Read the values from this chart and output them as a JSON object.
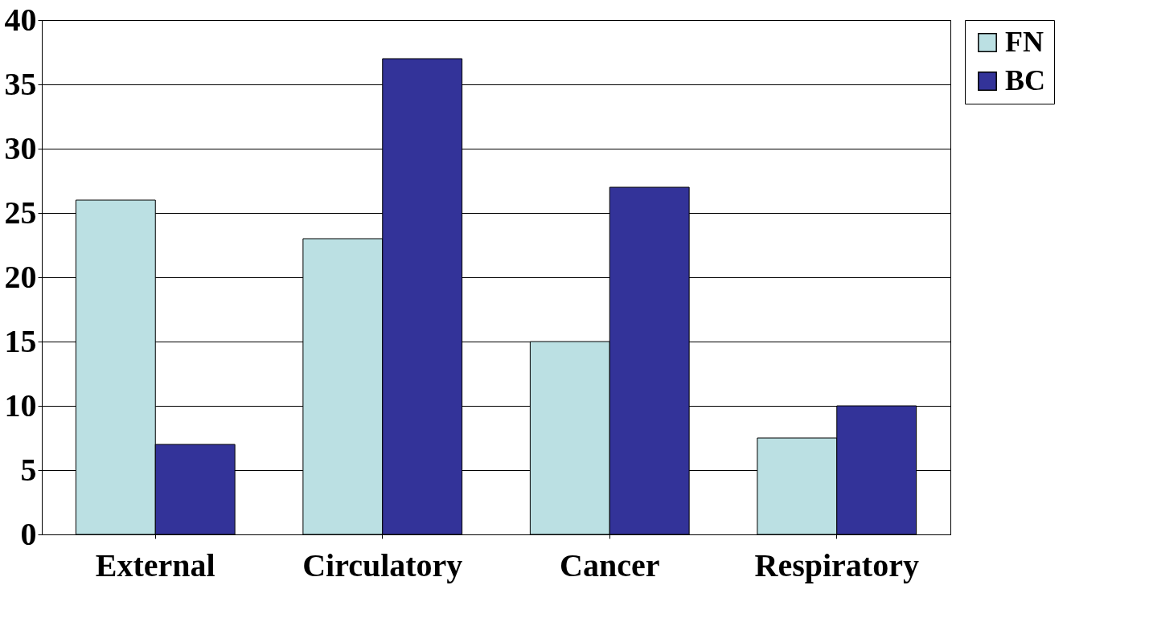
{
  "chart_data": {
    "type": "bar",
    "categories": [
      "External",
      "Circulatory",
      "Cancer",
      "Respiratory"
    ],
    "series": [
      {
        "name": "FN",
        "color": "#bbe0e3",
        "values": [
          26,
          23,
          15,
          7.5
        ]
      },
      {
        "name": "BC",
        "color": "#333399",
        "values": [
          7,
          37,
          27,
          10
        ]
      }
    ],
    "ylim": [
      0,
      40
    ],
    "yticks": [
      0,
      5,
      10,
      15,
      20,
      25,
      30,
      35,
      40
    ],
    "grid": "y",
    "legend": "right"
  }
}
